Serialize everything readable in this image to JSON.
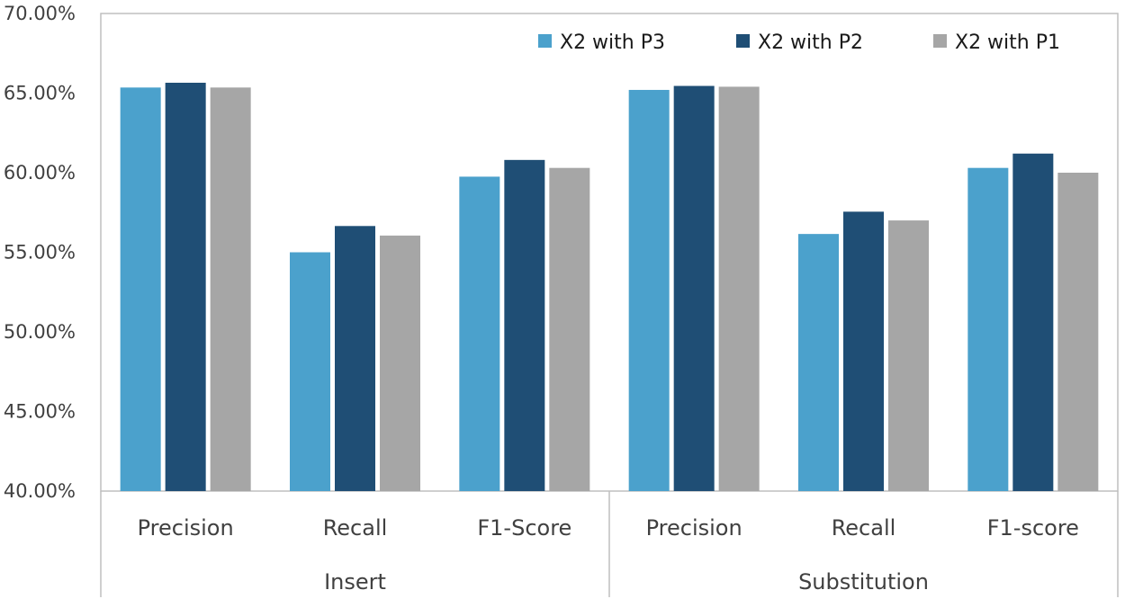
{
  "chart_data": {
    "type": "bar",
    "title": "",
    "xlabel": "",
    "ylabel": "",
    "groups": [
      {
        "label": "Insert",
        "categories": [
          "Precision",
          "Recall",
          "F1-Score"
        ]
      },
      {
        "label": "Substitution",
        "categories": [
          "Precision",
          "Recall",
          "F1-score"
        ]
      }
    ],
    "categories": [
      "Precision",
      "Recall",
      "F1-Score",
      "Precision",
      "Recall",
      "F1-score"
    ],
    "series": [
      {
        "name": "X2 with P3",
        "color": "#4BA1CC",
        "values": [
          65.35,
          55.0,
          59.75,
          65.2,
          56.15,
          60.3
        ]
      },
      {
        "name": "X2 with P2",
        "color": "#1F4E75",
        "values": [
          65.65,
          56.65,
          60.8,
          65.45,
          57.55,
          61.2
        ]
      },
      {
        "name": "X2 with P1",
        "color": "#A6A6A6",
        "values": [
          65.35,
          56.05,
          60.3,
          65.4,
          57.0,
          60.0
        ]
      }
    ],
    "ylim": [
      40,
      70
    ],
    "yticks": [
      40,
      45,
      50,
      55,
      60,
      65,
      70
    ],
    "ytick_labels": [
      "40.00%",
      "45.00%",
      "50.00%",
      "55.00%",
      "60.00%",
      "65.00%",
      "70.00%"
    ],
    "legend_position": "top-right",
    "grid": false
  }
}
